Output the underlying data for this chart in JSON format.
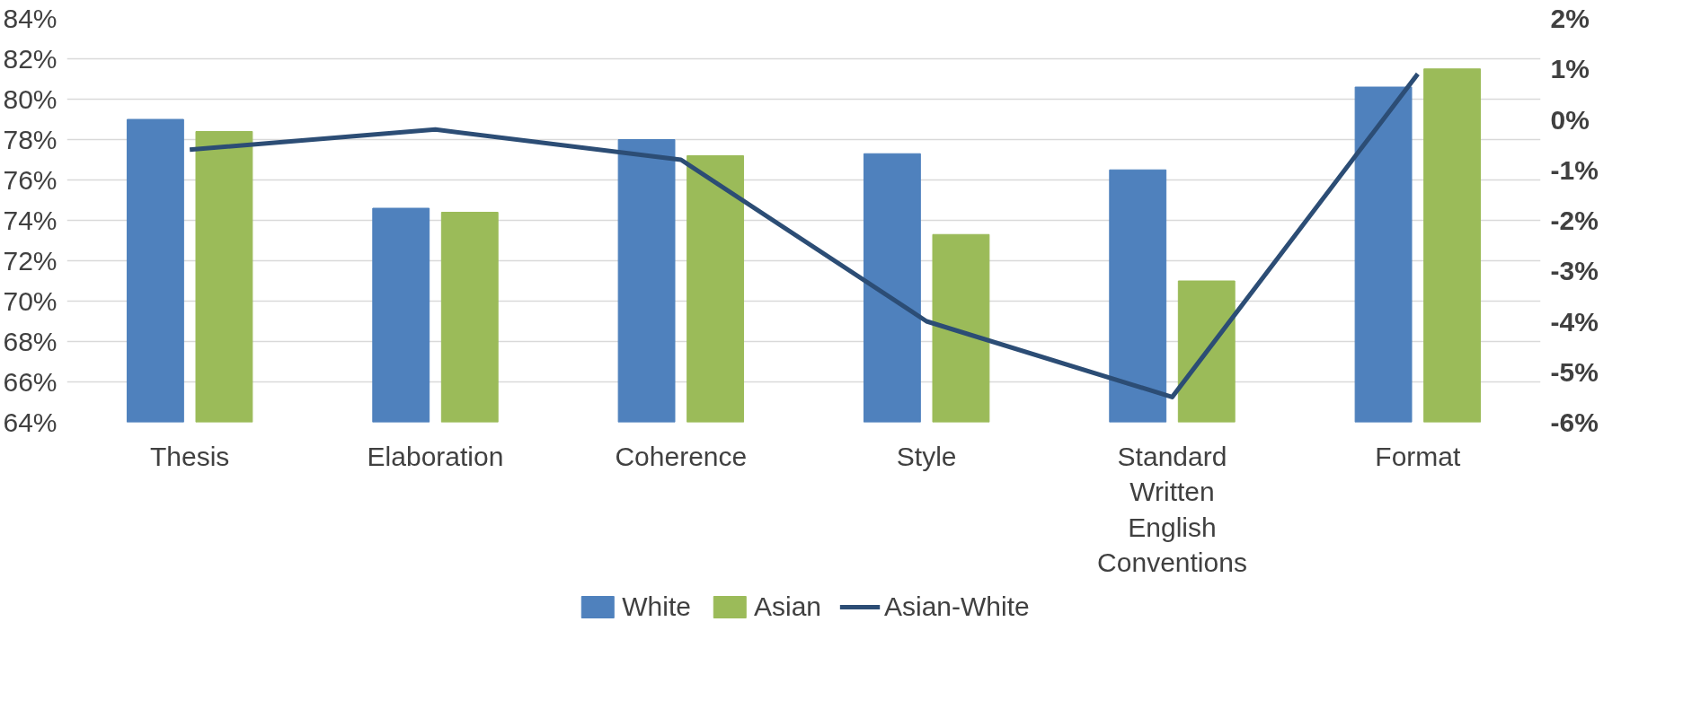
{
  "chart_data": {
    "type": "bar",
    "categories": [
      "Thesis",
      "Elaboration",
      "Coherence",
      "Style",
      "Standard Written English Conventions",
      "Format"
    ],
    "series": [
      {
        "name": "White",
        "color": "#4f81bd",
        "values": [
          79.0,
          74.6,
          78.0,
          77.3,
          76.5,
          80.6
        ]
      },
      {
        "name": "Asian",
        "color": "#9bbb59",
        "values": [
          78.4,
          74.4,
          77.2,
          73.3,
          71.0,
          81.5
        ]
      },
      {
        "name": "Asian-White",
        "type": "line",
        "axis": "y2",
        "color": "#2c4d75",
        "values": [
          -0.6,
          -0.2,
          -0.8,
          -4.0,
          -5.5,
          0.9
        ]
      }
    ],
    "ylim": [
      64,
      84
    ],
    "yticks": [
      {
        "value": 64,
        "label": "64%"
      },
      {
        "value": 66,
        "label": "66%"
      },
      {
        "value": 68,
        "label": "68%"
      },
      {
        "value": 70,
        "label": "70%"
      },
      {
        "value": 72,
        "label": "72%"
      },
      {
        "value": 74,
        "label": "74%"
      },
      {
        "value": 76,
        "label": "76%"
      },
      {
        "value": 78,
        "label": "78%"
      },
      {
        "value": 80,
        "label": "80%"
      },
      {
        "value": 82,
        "label": "82%"
      },
      {
        "value": 84,
        "label": "84%"
      }
    ],
    "y2lim": [
      -6,
      2
    ],
    "y2ticks": [
      {
        "value": -6,
        "label": "-6%"
      },
      {
        "value": -5,
        "label": "-5%"
      },
      {
        "value": -4,
        "label": "-4%"
      },
      {
        "value": -3,
        "label": "-3%"
      },
      {
        "value": -2,
        "label": "-2%"
      },
      {
        "value": -1,
        "label": "-1%"
      },
      {
        "value": 0,
        "label": "0%"
      },
      {
        "value": 1,
        "label": "1%"
      },
      {
        "value": 2,
        "label": "2%"
      }
    ],
    "grid": "y",
    "legend": "bottom"
  }
}
